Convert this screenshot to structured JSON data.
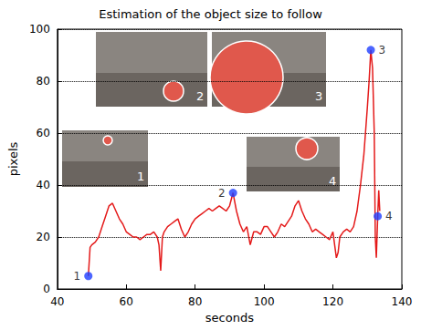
{
  "chart_data": {
    "type": "line",
    "title": "Estimation of the object size to follow",
    "x_label": "seconds",
    "y_label": "pixels",
    "x": [
      49,
      49.5,
      50,
      51,
      52,
      53,
      54,
      55,
      56,
      57,
      58,
      59,
      60,
      61,
      62,
      63,
      64,
      65,
      66,
      67,
      68,
      69,
      69.5,
      70,
      70.5,
      71,
      72,
      73,
      74,
      75,
      76,
      77,
      78,
      79,
      80,
      81,
      82,
      83,
      84,
      85,
      86,
      87,
      88,
      89,
      90,
      91,
      92,
      93,
      94,
      95,
      96,
      97,
      98,
      99,
      100,
      101,
      102,
      103,
      104,
      105,
      106,
      107,
      108,
      109,
      110,
      111,
      112,
      113,
      114,
      115,
      116,
      117,
      118,
      119,
      120,
      121,
      121.5,
      122,
      123,
      124,
      125,
      126,
      127,
      128,
      129,
      130,
      130.5,
      131,
      131.5,
      132,
      132.3,
      132.6,
      133,
      133.3,
      133.6
    ],
    "values": [
      5,
      16,
      17,
      18,
      20,
      24,
      28,
      32,
      33,
      30,
      27,
      25,
      22,
      21,
      20,
      20,
      19,
      20,
      21,
      21,
      22,
      20,
      17,
      7,
      20,
      22,
      24,
      25,
      26,
      27,
      23,
      20,
      22,
      25,
      27,
      28,
      29,
      30,
      31,
      30,
      31,
      32,
      31,
      30,
      32,
      37,
      30,
      25,
      22,
      24,
      17,
      22,
      22,
      21,
      24,
      24,
      22,
      20,
      22,
      25,
      24,
      26,
      28,
      32,
      34,
      30,
      27,
      25,
      22,
      23,
      22,
      21,
      20,
      19,
      22,
      12,
      14,
      20,
      22,
      23,
      22,
      24,
      30,
      40,
      52,
      70,
      80,
      92,
      85,
      60,
      20,
      12,
      28,
      38,
      30
    ],
    "color": "#e41a1a",
    "markers": {
      "x": [
        49,
        91,
        131,
        133
      ],
      "y": [
        5,
        37,
        92,
        28
      ],
      "labels": [
        "1",
        "2",
        "3",
        "4"
      ],
      "color": "#1f3fff"
    },
    "xlim": [
      40,
      140
    ],
    "xticks": [
      40,
      60,
      80,
      100,
      120,
      140
    ],
    "ylim": [
      0,
      100
    ],
    "yticks": [
      0,
      20,
      40,
      60,
      80,
      100
    ],
    "grid": true
  }
}
